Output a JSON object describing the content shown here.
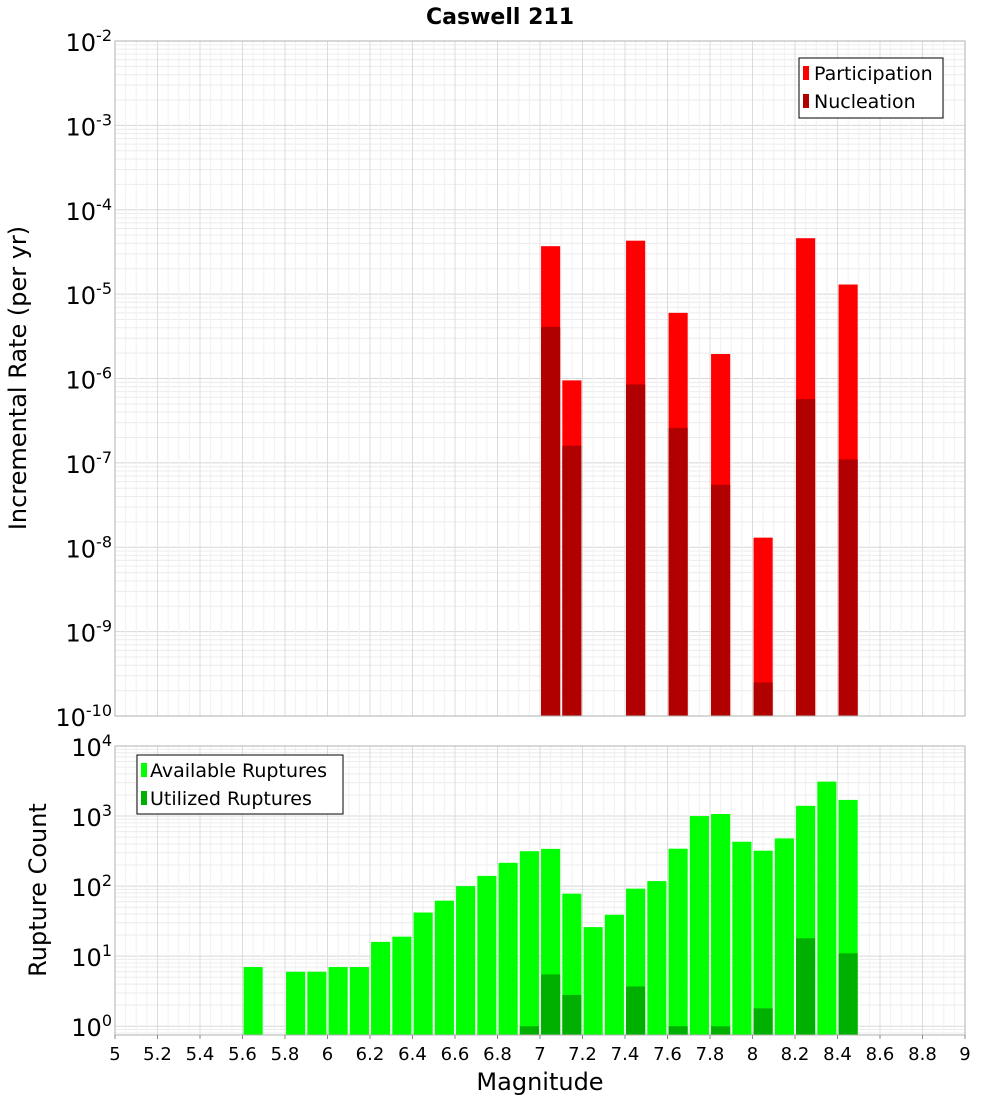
{
  "title": "Caswell 211",
  "chart_data": [
    {
      "type": "bar",
      "panel": "top",
      "title": "Caswell 211",
      "xlabel": "",
      "ylabel": "Incremental Rate (per yr)",
      "yscale": "log",
      "ylim": [
        1e-10,
        0.01
      ],
      "xlim": [
        5,
        9
      ],
      "bar_width": 0.09,
      "ytick_exponents": [
        -10,
        -9,
        -8,
        -7,
        -6,
        -5,
        -4,
        -3,
        -2
      ],
      "legend": {
        "position": "top-right",
        "entries": [
          "Participation",
          "Nucleation"
        ]
      },
      "colors": {
        "Participation": "#ff0000",
        "Nucleation": "#b00000"
      },
      "categories": [
        7.05,
        7.15,
        7.45,
        7.65,
        7.85,
        8.05,
        8.25,
        8.45
      ],
      "series": [
        {
          "name": "Participation",
          "values": [
            3.7e-05,
            9.5e-07,
            4.3e-05,
            6e-06,
            1.95e-06,
            1.3e-08,
            4.6e-05,
            1.3e-05
          ]
        },
        {
          "name": "Nucleation",
          "values": [
            4.1e-06,
            1.6e-07,
            8.5e-07,
            2.6e-07,
            5.5e-08,
            2.5e-10,
            5.7e-07,
            1.1e-07
          ]
        }
      ]
    },
    {
      "type": "bar",
      "panel": "bottom",
      "xlabel": "Magnitude",
      "ylabel": "Rupture Count",
      "yscale": "log",
      "ylim": [
        0.75,
        10000
      ],
      "xlim": [
        5,
        9
      ],
      "bar_width": 0.09,
      "ytick_exponents": [
        0,
        1,
        2,
        3,
        4
      ],
      "xticks": [
        "5",
        "5.2",
        "5.4",
        "5.6",
        "5.8",
        "6",
        "6.2",
        "6.4",
        "6.6",
        "6.8",
        "7",
        "7.2",
        "7.4",
        "7.6",
        "7.8",
        "8",
        "8.2",
        "8.4",
        "8.6",
        "8.8",
        "9"
      ],
      "legend": {
        "position": "top-left",
        "entries": [
          "Available Ruptures",
          "Utilized Ruptures"
        ]
      },
      "colors": {
        "Available Ruptures": "#00ff00",
        "Utilized Ruptures": "#00b000"
      },
      "categories": [
        5.65,
        5.85,
        5.95,
        6.05,
        6.15,
        6.25,
        6.35,
        6.45,
        6.55,
        6.65,
        6.75,
        6.85,
        6.95,
        7.05,
        7.15,
        7.25,
        7.35,
        7.45,
        7.55,
        7.65,
        7.75,
        7.85,
        7.95,
        8.05,
        8.15,
        8.25,
        8.35,
        8.45
      ],
      "series": [
        {
          "name": "Available Ruptures",
          "values": [
            7,
            6,
            6,
            7,
            7,
            16,
            19,
            42,
            62,
            100,
            140,
            215,
            315,
            340,
            78,
            26,
            39,
            92,
            118,
            342,
            1000,
            1070,
            430,
            320,
            480,
            1400,
            3100,
            1700
          ]
        },
        {
          "name": "Utilized Ruptures",
          "values": [
            0,
            0,
            0,
            0,
            0,
            0,
            0,
            0,
            0,
            0,
            0,
            0,
            1,
            5.5,
            2.8,
            0,
            0,
            3.7,
            0,
            1,
            0,
            1,
            0,
            1.8,
            0,
            18,
            0,
            11
          ]
        }
      ]
    }
  ]
}
